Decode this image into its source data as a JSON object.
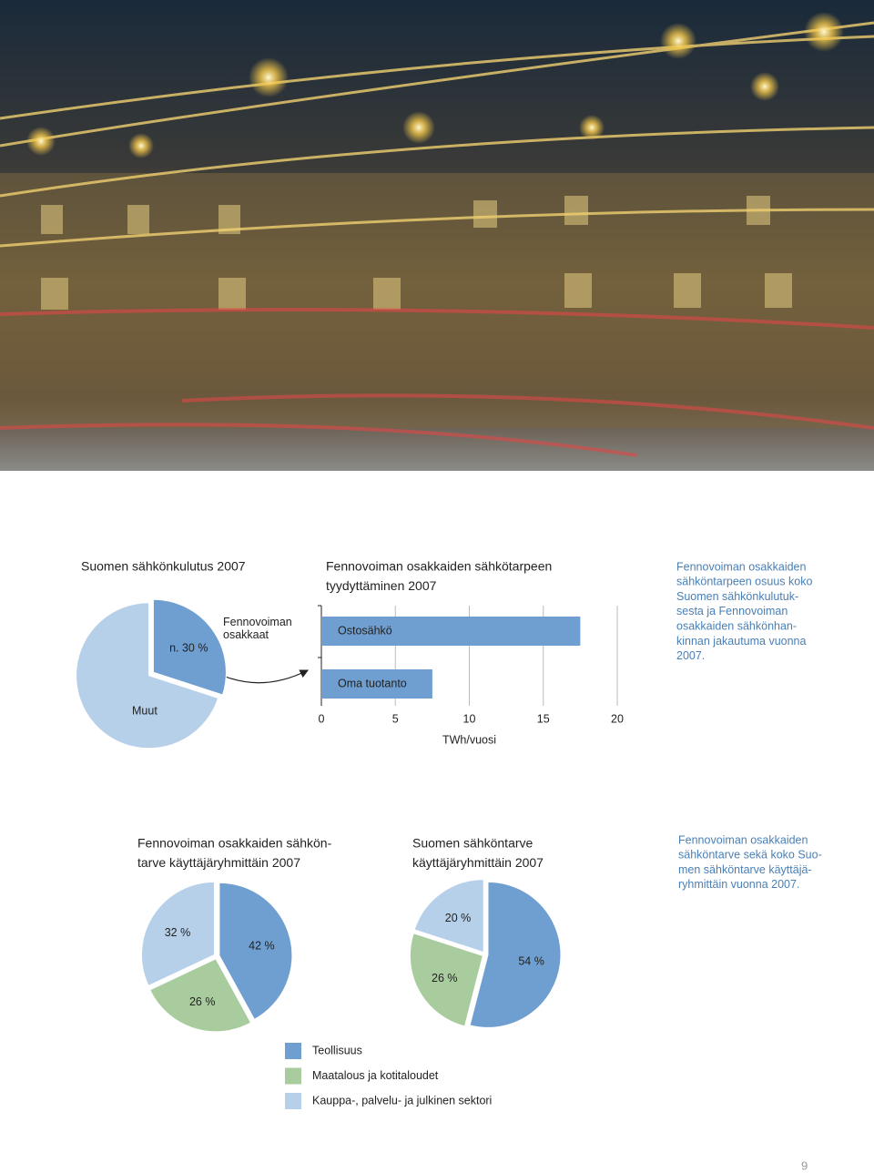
{
  "chart_data": [
    {
      "type": "pie",
      "title": [
        "Suomen sähkönkulutus 2007"
      ],
      "categories": [
        "Fennovoiman osakkaat",
        "Muut"
      ],
      "values": [
        30,
        70
      ],
      "value_labels": [
        "n. 30 %",
        null
      ],
      "colors": [
        "#6f9fd0",
        "#b7d0ea"
      ]
    },
    {
      "type": "bar",
      "orientation": "horizontal",
      "title": [
        "Fennovoiman osakkaiden sähkötarpeen",
        "tyydyttäminen 2007"
      ],
      "categories": [
        "Ostosähkö",
        "Oma tuotanto"
      ],
      "values": [
        17.5,
        7.5
      ],
      "color": "#6f9fd0",
      "xlim": [
        0,
        20
      ],
      "xticks": [
        0,
        5,
        10,
        15,
        20
      ],
      "xlabel": "TWh/vuosi"
    },
    {
      "type": "pie",
      "title": [
        "Fennovoiman osakkaiden sähkön-",
        "tarve käyttäjäryhmittäin 2007"
      ],
      "values": [
        42,
        26,
        32
      ],
      "value_labels": [
        "42 %",
        "26 %",
        "32 %"
      ],
      "colors": [
        "#6f9fd0",
        "#a9cc9e",
        "#b7d0ea"
      ]
    },
    {
      "type": "pie",
      "title": [
        "Suomen sähköntarve",
        "käyttäjäryhmittäin 2007"
      ],
      "values": [
        54,
        26,
        20
      ],
      "value_labels": [
        "54 %",
        "26 %",
        "20 %"
      ],
      "colors": [
        "#6f9fd0",
        "#a9cc9e",
        "#b7d0ea"
      ]
    }
  ],
  "legend": {
    "items": [
      {
        "name": "Teollisuus",
        "color": "#6f9fd0"
      },
      {
        "name": "Maatalous ja kotitaloudet",
        "color": "#a9cc9e"
      },
      {
        "name": "Kauppa-, palvelu- ja julkinen sektori",
        "color": "#b7d0ea"
      }
    ]
  },
  "captions": [
    [
      "Fennovoiman osakkaiden",
      "sähköntarpeen osuus koko",
      "Suomen sähkönkulutuk-",
      "sesta ja Fennovoiman",
      "osakkaiden sähkönhan-",
      "kinnan jakautuma vuonna",
      "2007."
    ],
    [
      "Fennovoiman osakkaiden",
      "sähköntarve sekä koko Suo-",
      "men sähköntarve käyttäjä-",
      "ryhmittäin vuonna 2007."
    ]
  ],
  "page_number": "9"
}
